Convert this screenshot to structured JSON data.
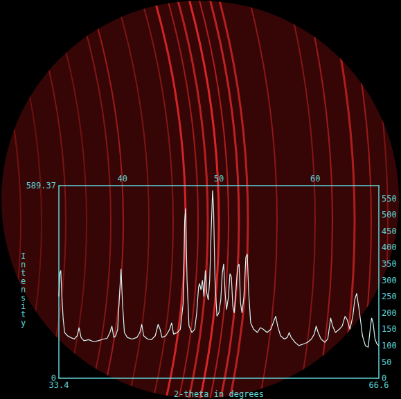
{
  "chart_data": {
    "type": "line",
    "x_label": "2-theta in degrees",
    "y_label": "Intensity",
    "x": [
      33.4,
      33.5,
      33.6,
      33.7,
      33.85,
      34.0,
      34.3,
      34.6,
      35.0,
      35.3,
      35.5,
      35.7,
      36.0,
      36.5,
      37.0,
      37.5,
      38.0,
      38.4,
      38.7,
      38.9,
      39.1,
      39.3,
      39.5,
      39.7,
      39.85,
      40.0,
      40.2,
      40.5,
      41.0,
      41.5,
      41.8,
      42.0,
      42.2,
      42.6,
      43.0,
      43.4,
      43.7,
      43.9,
      44.1,
      44.5,
      44.9,
      45.1,
      45.3,
      45.7,
      46.0,
      46.3,
      46.45,
      46.55,
      46.7,
      46.9,
      47.2,
      47.5,
      47.7,
      47.9,
      48.0,
      48.15,
      48.3,
      48.45,
      48.6,
      48.75,
      48.9,
      49.05,
      49.2,
      49.35,
      49.45,
      49.6,
      49.8,
      50.0,
      50.2,
      50.35,
      50.5,
      50.65,
      50.8,
      51.0,
      51.15,
      51.3,
      51.45,
      51.6,
      51.8,
      51.95,
      52.1,
      52.25,
      52.4,
      52.6,
      52.8,
      52.95,
      53.1,
      53.3,
      53.6,
      54.0,
      54.3,
      54.6,
      55.0,
      55.4,
      55.7,
      55.9,
      56.1,
      56.4,
      56.8,
      57.1,
      57.3,
      57.5,
      57.9,
      58.3,
      58.8,
      59.2,
      59.6,
      59.9,
      60.1,
      60.3,
      60.6,
      61.0,
      61.3,
      61.6,
      61.8,
      62.1,
      62.5,
      62.8,
      63.1,
      63.3,
      63.6,
      63.9,
      64.1,
      64.3,
      64.6,
      64.9,
      65.2,
      65.5,
      65.7,
      65.85,
      66.0,
      66.2,
      66.4,
      66.6
    ],
    "values": [
      250,
      320,
      330,
      260,
      180,
      140,
      130,
      125,
      120,
      130,
      155,
      125,
      115,
      118,
      112,
      115,
      120,
      122,
      140,
      160,
      125,
      130,
      150,
      260,
      335,
      230,
      140,
      125,
      120,
      125,
      140,
      165,
      130,
      120,
      118,
      130,
      165,
      150,
      125,
      130,
      150,
      170,
      135,
      140,
      150,
      230,
      480,
      520,
      300,
      160,
      140,
      150,
      200,
      280,
      290,
      270,
      300,
      250,
      330,
      260,
      240,
      300,
      450,
      575,
      520,
      300,
      190,
      200,
      240,
      320,
      350,
      260,
      210,
      250,
      320,
      310,
      220,
      200,
      280,
      340,
      350,
      230,
      200,
      250,
      370,
      380,
      260,
      170,
      150,
      140,
      155,
      150,
      140,
      150,
      175,
      190,
      160,
      130,
      120,
      125,
      140,
      125,
      110,
      100,
      105,
      110,
      120,
      135,
      160,
      140,
      120,
      110,
      120,
      185,
      160,
      140,
      150,
      160,
      190,
      180,
      150,
      190,
      240,
      260,
      200,
      130,
      100,
      95,
      150,
      185,
      170,
      120,
      105,
      100
    ],
    "color": "#d8f4f4",
    "xlim": [
      33.4,
      66.6
    ],
    "xticks": [
      33.4,
      66.6
    ],
    "x2lim": [
      33.4,
      66.6
    ],
    "x2ticks": [
      40,
      50,
      60
    ],
    "ylim": [
      0,
      589.37
    ],
    "yticks": [
      0,
      589.37
    ],
    "y2lim": [
      0,
      589.37
    ],
    "y2ticks": [
      0,
      50,
      100,
      150,
      200,
      250,
      300,
      350,
      400,
      450,
      500,
      550
    ],
    "grid": false,
    "legend": false
  }
}
